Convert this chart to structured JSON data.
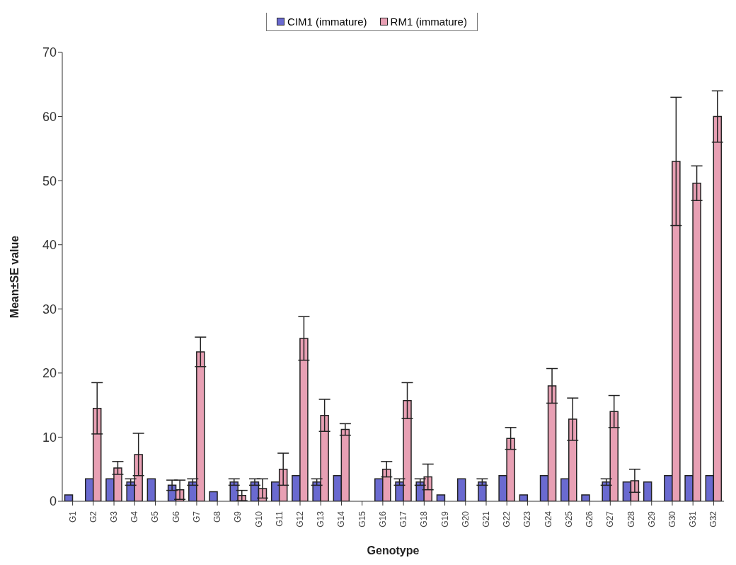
{
  "chart_data": {
    "type": "bar",
    "xlabel": "Genotype",
    "ylabel": "Mean±SE value",
    "categories": [
      "G1",
      "G2",
      "G3",
      "G4",
      "G5",
      "G6",
      "G7",
      "G8",
      "G9",
      "G10",
      "G11",
      "G12",
      "G13",
      "G14",
      "G15",
      "G16",
      "G17",
      "G18",
      "G19",
      "G20",
      "G21",
      "G22",
      "G23",
      "G24",
      "G25",
      "G26",
      "G27",
      "G28",
      "G29",
      "G30",
      "G31",
      "G32"
    ],
    "series": [
      {
        "name": "CIM1 (immature)",
        "color": "#6a6ad0",
        "values": [
          1,
          3.5,
          3.5,
          3,
          3.5,
          2.5,
          3,
          1.5,
          3,
          3,
          3,
          4,
          3,
          4,
          null,
          3.5,
          3,
          3,
          1,
          3.5,
          3,
          4,
          1,
          4,
          3.5,
          1,
          3,
          3,
          3,
          4,
          4,
          4
        ],
        "errors": [
          null,
          null,
          null,
          0.5,
          null,
          0.8,
          0.5,
          null,
          0.5,
          0.5,
          null,
          null,
          0.5,
          null,
          null,
          null,
          0.5,
          0.5,
          null,
          null,
          0.5,
          null,
          null,
          null,
          null,
          null,
          0.5,
          null,
          null,
          null,
          null,
          null
        ]
      },
      {
        "name": "RM1 (immature)",
        "color": "#e8a0b4",
        "values": [
          null,
          14.5,
          5.2,
          7.3,
          null,
          1.8,
          23.3,
          null,
          0.9,
          2,
          5,
          25.4,
          13.4,
          11.2,
          null,
          5,
          15.7,
          3.8,
          null,
          null,
          null,
          9.8,
          null,
          18,
          12.8,
          null,
          14,
          3.2,
          null,
          53,
          49.6,
          60
        ],
        "errors": [
          null,
          4,
          1,
          3.3,
          null,
          1.5,
          2.3,
          null,
          0.8,
          1.5,
          2.5,
          3.4,
          2.5,
          0.9,
          null,
          1.2,
          2.8,
          2,
          null,
          null,
          null,
          1.7,
          null,
          2.7,
          3.3,
          null,
          2.5,
          1.8,
          null,
          10,
          2.7,
          4
        ]
      }
    ],
    "ylim": [
      0,
      70
    ],
    "yticks": [
      0,
      10,
      20,
      30,
      40,
      50,
      60,
      70
    ],
    "grid": false,
    "legend": "top"
  }
}
